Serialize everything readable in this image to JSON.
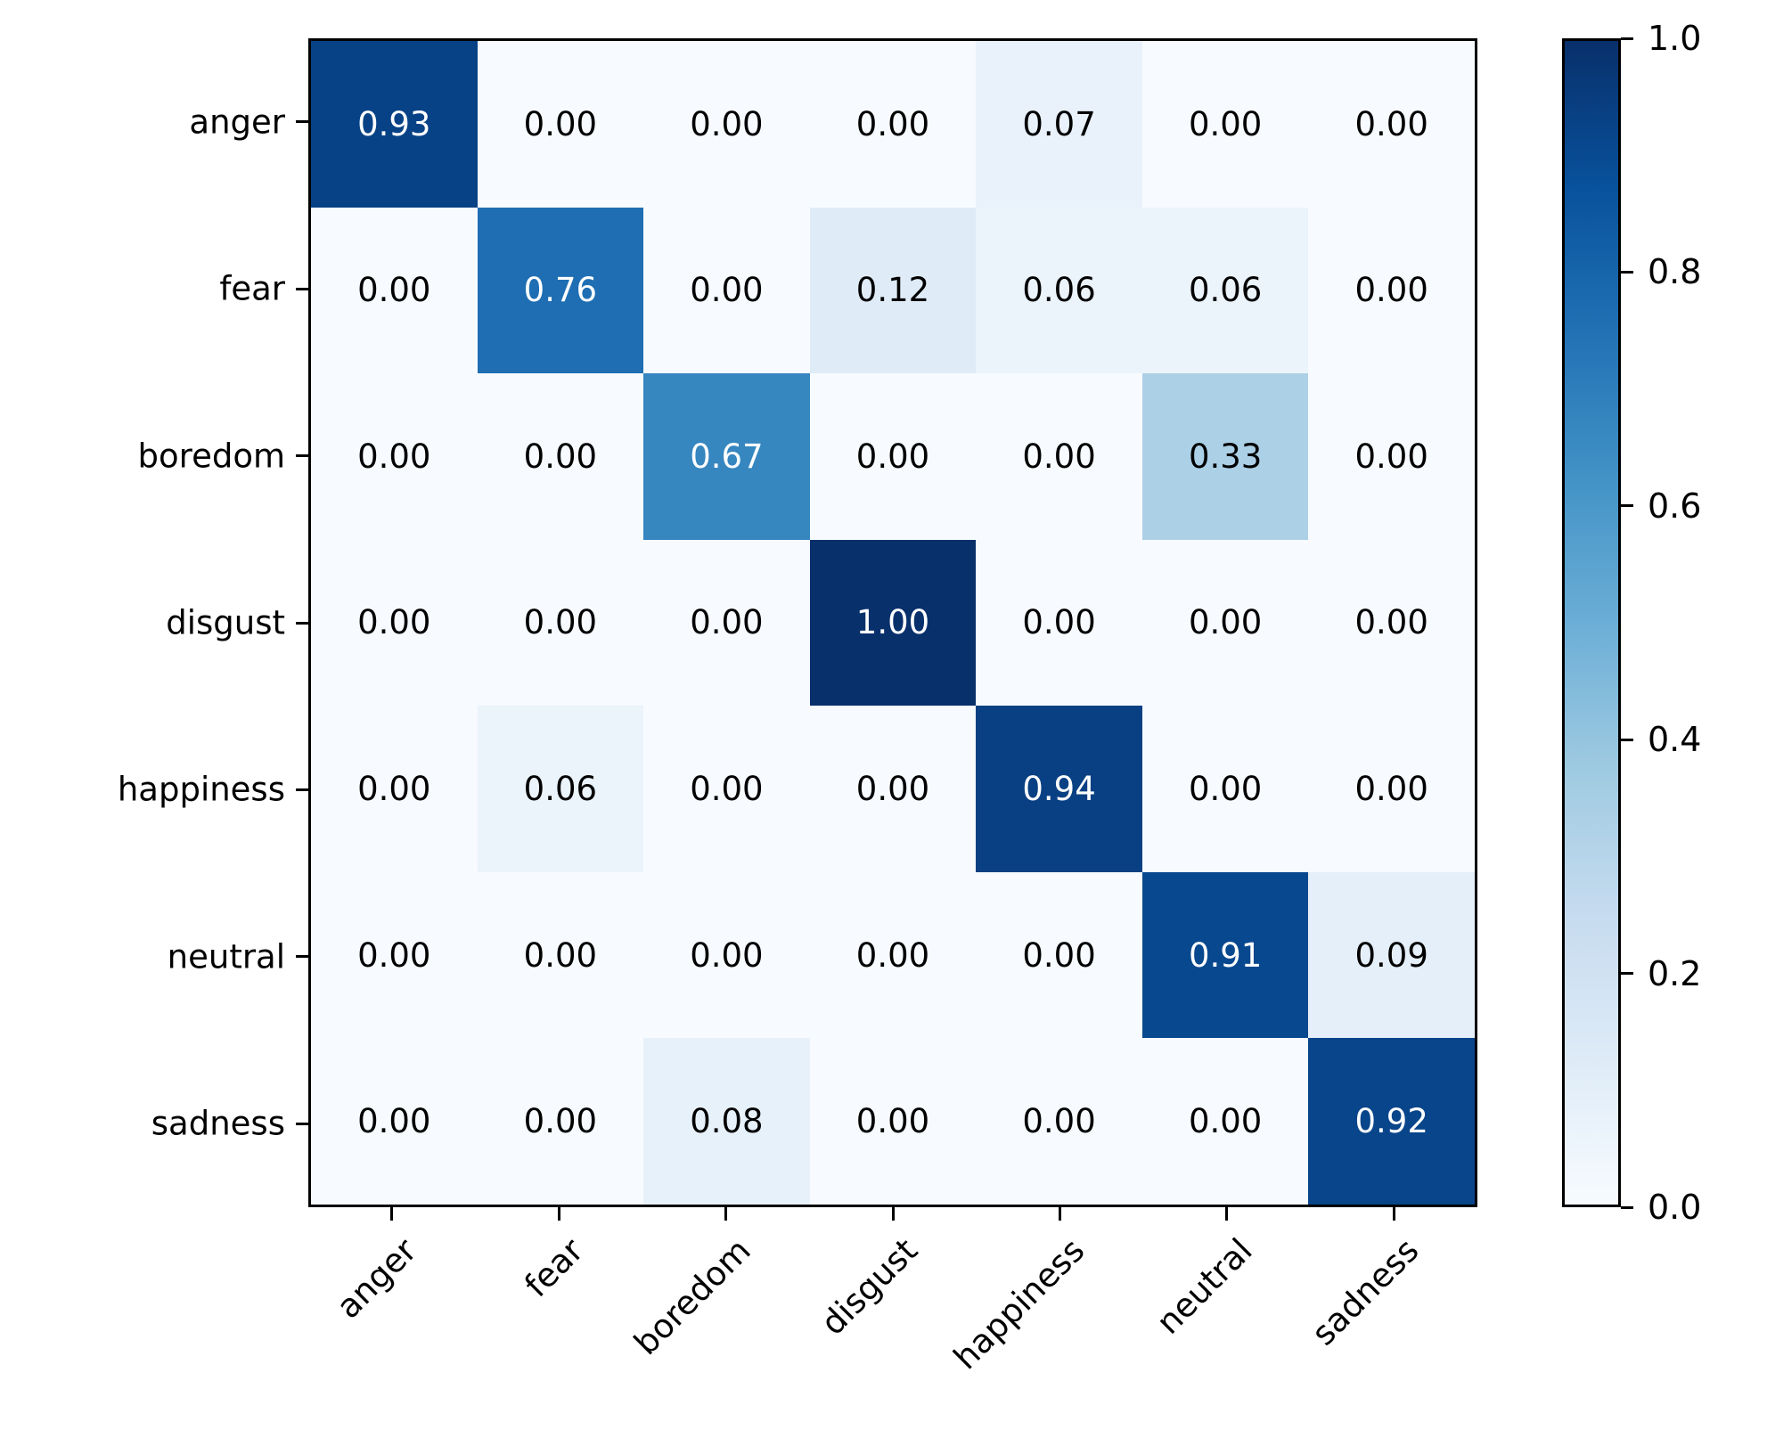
{
  "chart_data": {
    "type": "heatmap",
    "title": "",
    "xlabel": "",
    "ylabel": "",
    "categories": [
      "anger",
      "fear",
      "boredom",
      "disgust",
      "happiness",
      "neutral",
      "sadness"
    ],
    "rows": [
      "anger",
      "fear",
      "boredom",
      "disgust",
      "happiness",
      "neutral",
      "sadness"
    ],
    "cols": [
      "anger",
      "fear",
      "boredom",
      "disgust",
      "happiness",
      "neutral",
      "sadness"
    ],
    "matrix": [
      [
        0.93,
        0.0,
        0.0,
        0.0,
        0.07,
        0.0,
        0.0
      ],
      [
        0.0,
        0.76,
        0.0,
        0.12,
        0.06,
        0.06,
        0.0
      ],
      [
        0.0,
        0.0,
        0.67,
        0.0,
        0.0,
        0.33,
        0.0
      ],
      [
        0.0,
        0.0,
        0.0,
        1.0,
        0.0,
        0.0,
        0.0
      ],
      [
        0.0,
        0.06,
        0.0,
        0.0,
        0.94,
        0.0,
        0.0
      ],
      [
        0.0,
        0.0,
        0.0,
        0.0,
        0.0,
        0.91,
        0.09
      ],
      [
        0.0,
        0.0,
        0.08,
        0.0,
        0.0,
        0.0,
        0.92
      ]
    ],
    "value_decimals": 2,
    "x_tick_rotation_deg": 45,
    "grid": false,
    "legend_position": "none",
    "colorbar": {
      "position": "right",
      "min": 0.0,
      "max": 1.0,
      "tick_values": [
        0.0,
        0.2,
        0.4,
        0.6,
        0.8,
        1.0
      ],
      "tick_labels": [
        "0.0",
        "0.2",
        "0.4",
        "0.6",
        "0.8",
        "1.0"
      ]
    },
    "colormap": {
      "name": "Blues",
      "stops": [
        "#f7fbff",
        "#deebf7",
        "#c6dbef",
        "#9ecae1",
        "#6baed6",
        "#4292c6",
        "#2171b5",
        "#08519c",
        "#08306b"
      ]
    },
    "cell_text_colors": {
      "dark_text": "#000000",
      "light_text": "#ffffff",
      "light_text_threshold": 0.5
    },
    "axis_color": "#000000"
  }
}
